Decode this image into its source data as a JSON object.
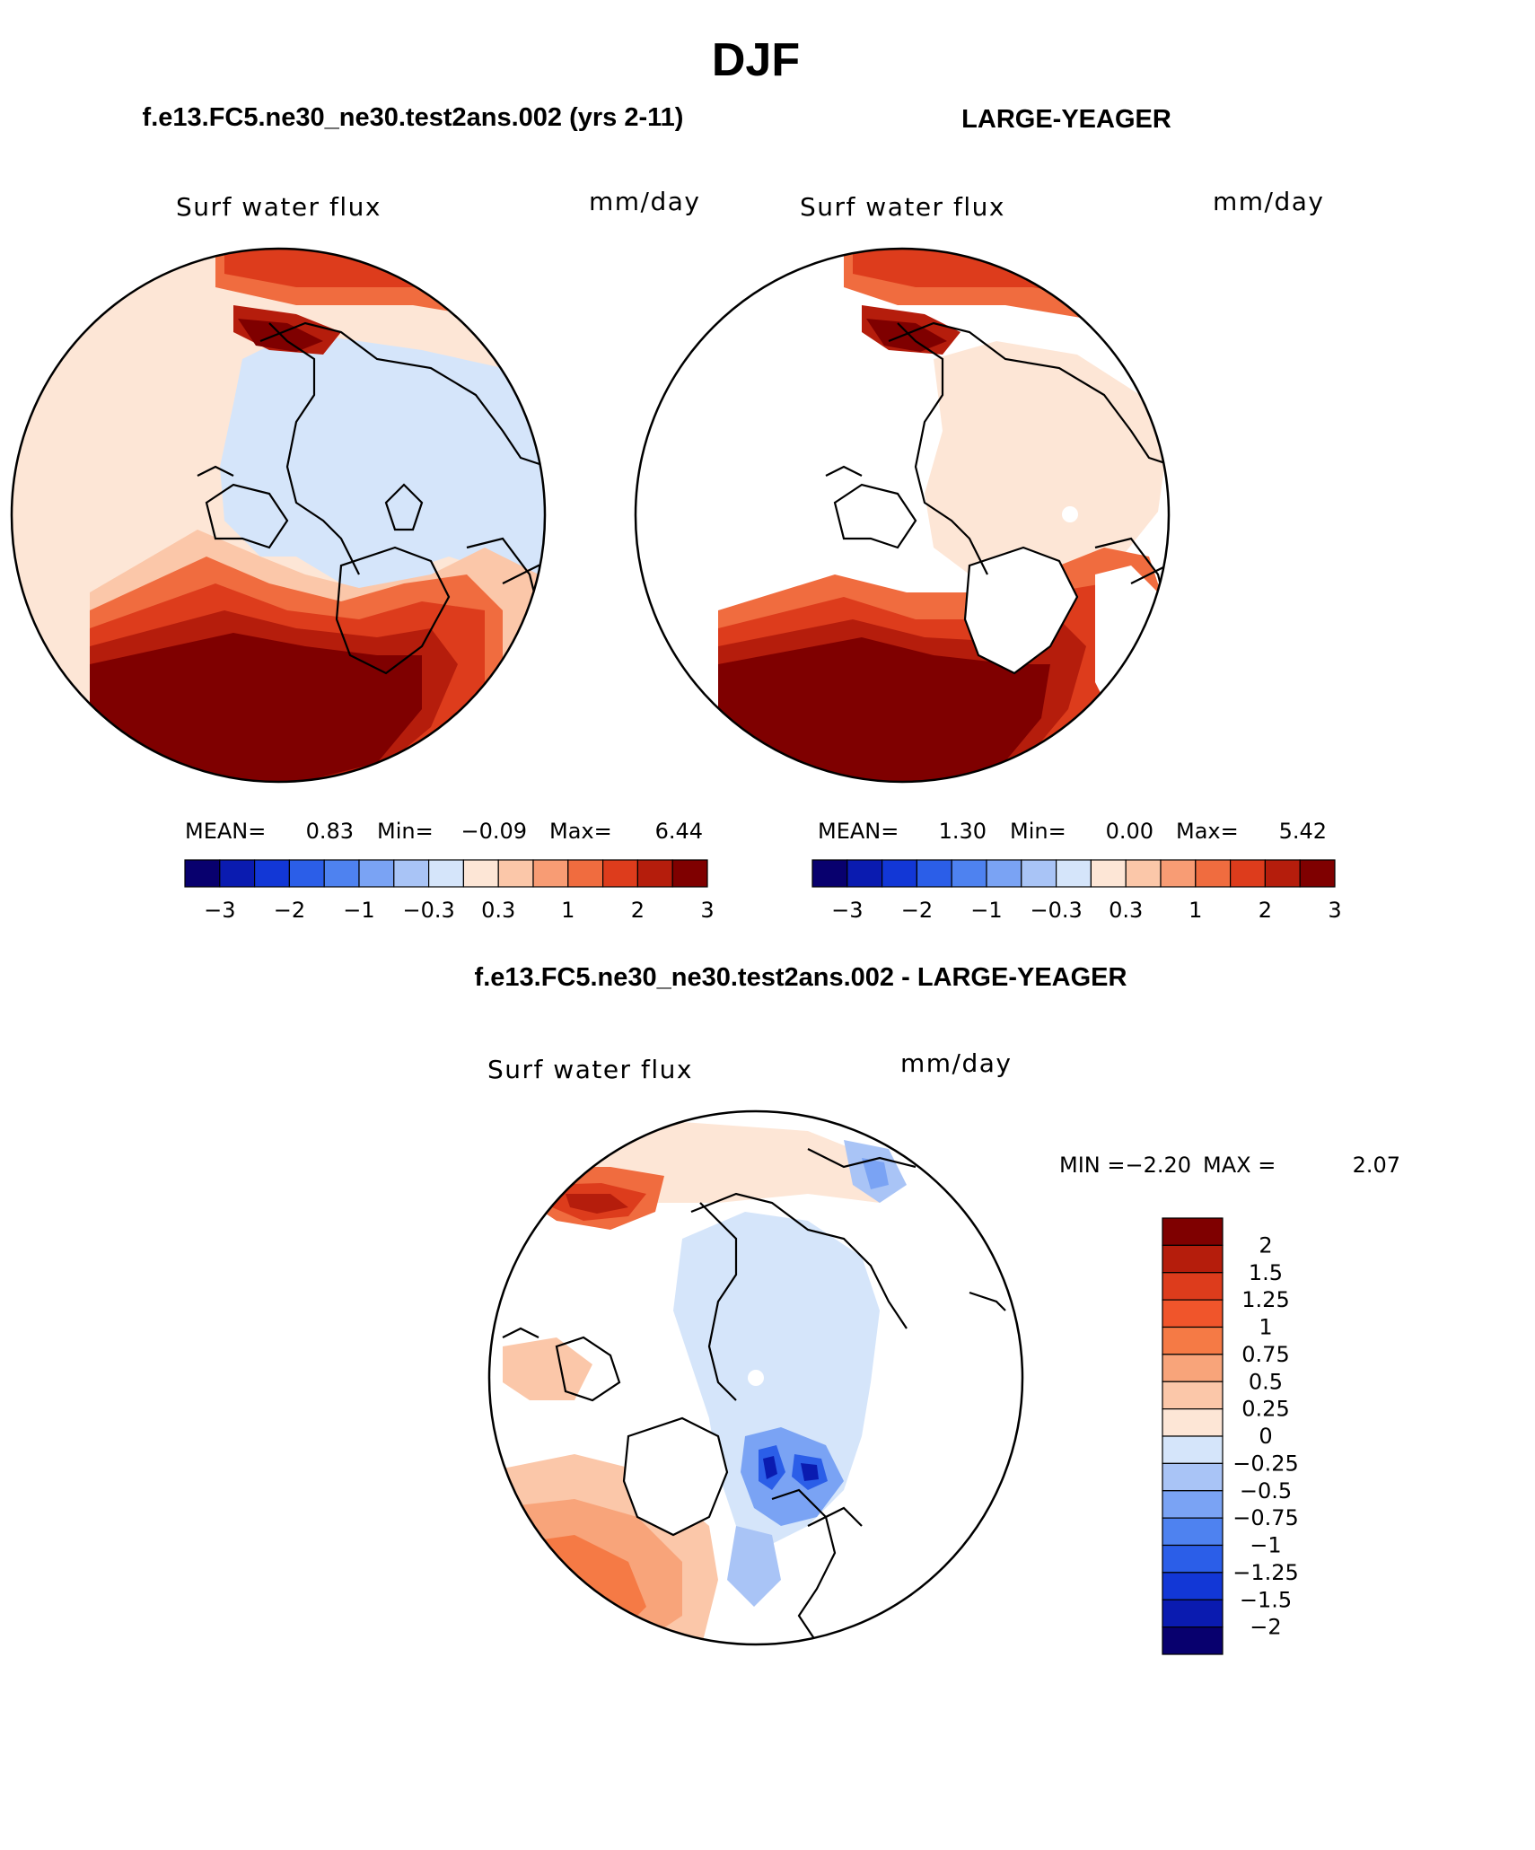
{
  "figure": {
    "title": "DJF",
    "bottom_title": "f.e13.FC5.ne30_ne30.test2ans.002 - LARGE-YEAGER"
  },
  "colors": {
    "sea_ice_white": "#ffffff",
    "coast": "#000000"
  },
  "chart_data": [
    {
      "type": "heatmap",
      "projection": "north-polar-stereographic",
      "header": "f.e13.FC5.ne30_ne30.test2ans.002 (yrs 2-11)",
      "variable_label": "Surf water flux",
      "units_label": "mm/day",
      "stats": {
        "mean_label": "MEAN=",
        "mean": "0.83",
        "min_label": "Min=",
        "min": "−0.09",
        "max_label": "Max=",
        "max": "6.44"
      },
      "colorbar": {
        "orientation": "horizontal",
        "levels": [
          -3,
          -2.5,
          -2,
          -1.5,
          -1,
          -0.6,
          -0.3,
          0,
          0.3,
          0.6,
          1,
          1.5,
          2,
          2.5,
          3
        ],
        "tick_labels": [
          "−3",
          "−2",
          "−1",
          "−0.3",
          "0.3",
          "1",
          "2",
          "3"
        ],
        "colors": [
          "#08006e",
          "#0a1bb0",
          "#1237d6",
          "#2b5ee8",
          "#4e82f0",
          "#7aa3f4",
          "#a9c4f6",
          "#d5e5fa",
          "#fde6d6",
          "#fbc7a9",
          "#f89c74",
          "#f06c3f",
          "#dd3c1c",
          "#b51d0c",
          "#7f0000"
        ]
      },
      "regions": [
        {
          "name": "north-atlantic",
          "value_class": "> 3"
        },
        {
          "name": "north-pacific",
          "value_class": "1 to 3"
        },
        {
          "name": "arctic-ocean",
          "value_class": "-0.3 to 0"
        },
        {
          "name": "land",
          "value_class": "0 to 0.3"
        }
      ]
    },
    {
      "type": "heatmap",
      "projection": "north-polar-stereographic",
      "header": "LARGE-YEAGER",
      "variable_label": "Surf water flux",
      "units_label": "mm/day",
      "stats": {
        "mean_label": "MEAN=",
        "mean": "1.30",
        "min_label": "Min=",
        "min": "0.00",
        "max_label": "Max=",
        "max": "5.42"
      },
      "colorbar": {
        "orientation": "horizontal",
        "levels": [
          -3,
          -2.5,
          -2,
          -1.5,
          -1,
          -0.6,
          -0.3,
          0,
          0.3,
          0.6,
          1,
          1.5,
          2,
          2.5,
          3
        ],
        "tick_labels": [
          "−3",
          "−2",
          "−1",
          "−0.3",
          "0.3",
          "1",
          "2",
          "3"
        ],
        "colors": [
          "#08006e",
          "#0a1bb0",
          "#1237d6",
          "#2b5ee8",
          "#4e82f0",
          "#7aa3f4",
          "#a9c4f6",
          "#d5e5fa",
          "#fde6d6",
          "#fbc7a9",
          "#f89c74",
          "#f06c3f",
          "#dd3c1c",
          "#b51d0c",
          "#7f0000"
        ]
      },
      "regions": [
        {
          "name": "north-atlantic",
          "value_class": "> 3"
        },
        {
          "name": "north-pacific",
          "value_class": "1 to 3"
        },
        {
          "name": "arctic-ocean",
          "value_class": "0 to 0.3"
        },
        {
          "name": "land",
          "value_class": "missing"
        }
      ]
    },
    {
      "type": "heatmap",
      "projection": "north-polar-stereographic",
      "variable_label": "Surf water flux",
      "units_label": "mm/day",
      "stats": {
        "min_label": "MIN =",
        "min": "−2.20",
        "max_label": "MAX =",
        "max": "2.07"
      },
      "colorbar": {
        "orientation": "vertical",
        "levels": [
          2,
          1.5,
          1.25,
          1,
          0.75,
          0.5,
          0.25,
          0,
          -0.25,
          -0.5,
          -0.75,
          -1,
          -1.25,
          -1.5,
          -2
        ],
        "tick_labels": [
          "2",
          "1.5",
          "1.25",
          "1",
          "0.75",
          "0.5",
          "0.25",
          "0",
          "−0.25",
          "−0.5",
          "−0.75",
          "−1",
          "−1.25",
          "−1.5",
          "−2"
        ],
        "colors_top_to_bottom": [
          "#7f0000",
          "#b51d0c",
          "#dd3c1c",
          "#f0552b",
          "#f57a45",
          "#f8a47a",
          "#fbc7a9",
          "#fde6d6",
          "#d5e5fa",
          "#a9c4f6",
          "#7aa3f4",
          "#4e82f0",
          "#2b5ee8",
          "#1237d6",
          "#0a1bb0",
          "#08006e"
        ]
      },
      "regions": [
        {
          "name": "north-atlantic",
          "value_class": "0.25 to 1"
        },
        {
          "name": "north-pacific",
          "value_class": "0.5 to 1.5"
        },
        {
          "name": "arctic-ocean",
          "value_class": "-0.25 to 0"
        },
        {
          "name": "barents-kara",
          "value_class": "-2 to -0.5"
        },
        {
          "name": "land",
          "value_class": "missing"
        }
      ]
    }
  ]
}
